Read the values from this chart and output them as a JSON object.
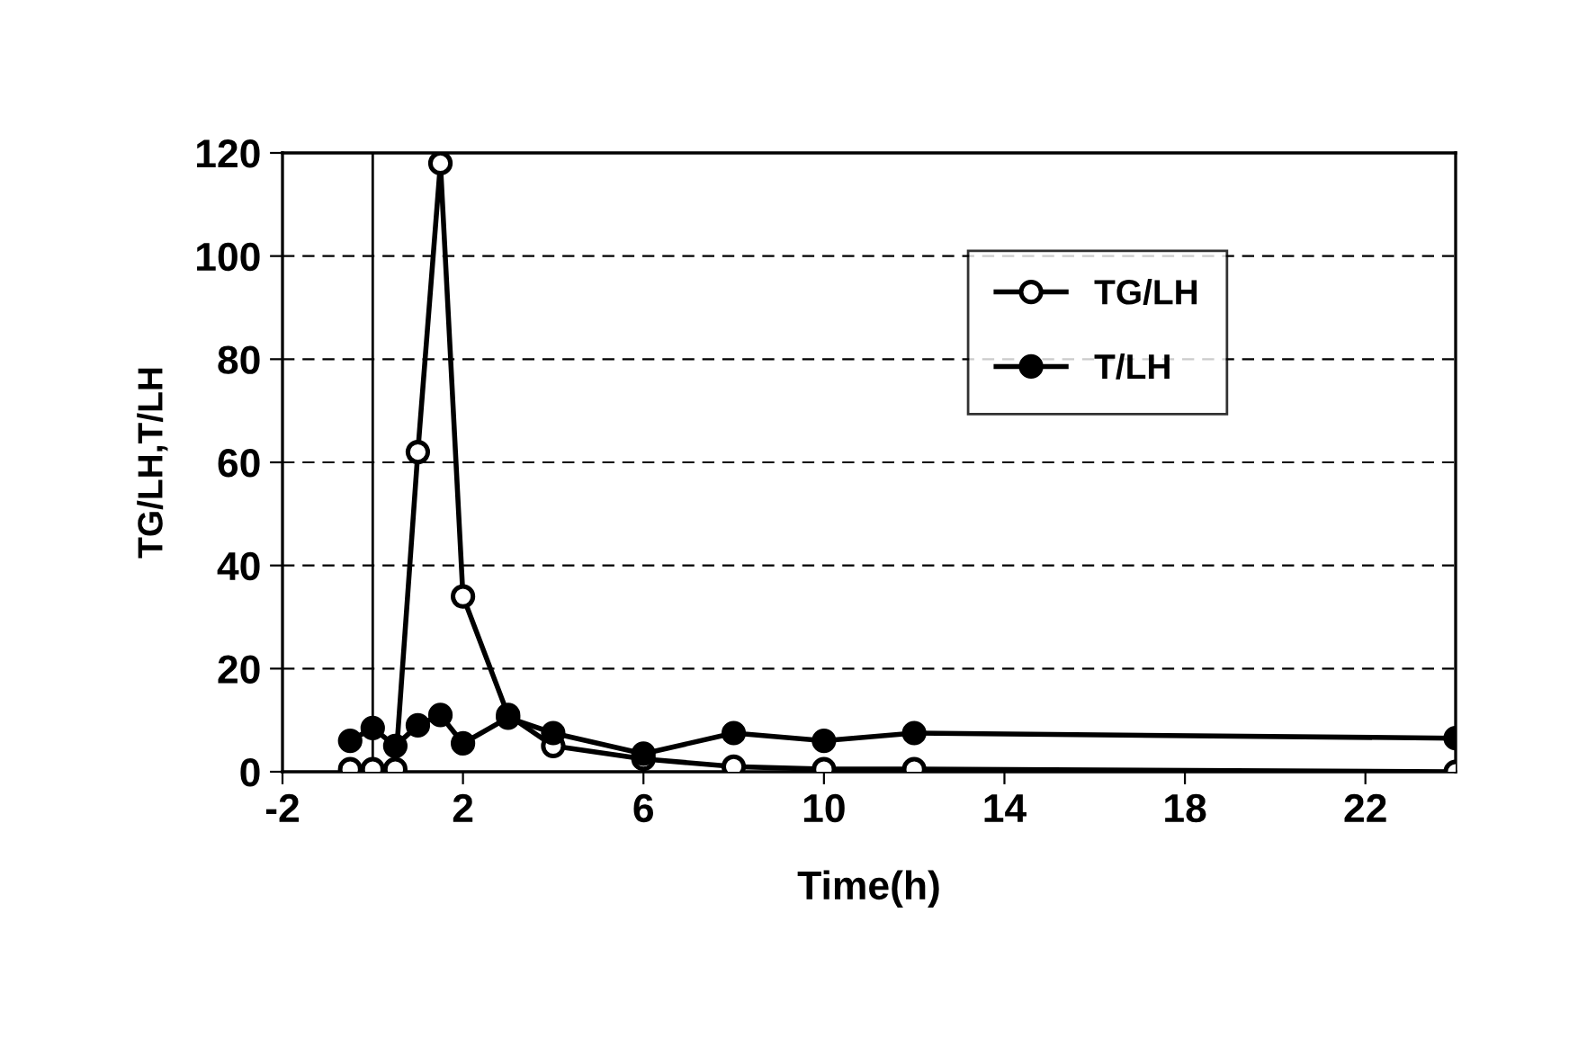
{
  "chart_data": {
    "type": "line",
    "xlabel": "Time(h)",
    "ylabel": "TG/LH,T/LH",
    "x": [
      -0.5,
      0,
      0.5,
      1,
      1.5,
      2,
      3,
      4,
      6,
      8,
      10,
      12,
      24
    ],
    "series": [
      {
        "name": "TG/LH",
        "color": "#000000",
        "marker": "circle",
        "values": [
          0.5,
          0.5,
          0.5,
          62,
          118,
          34,
          11,
          5,
          2.5,
          1,
          0.5,
          0.5,
          0
        ]
      },
      {
        "name": "T/LH",
        "color": "#000000",
        "marker": "circle",
        "values": [
          6,
          8.5,
          5,
          9,
          11,
          5.5,
          10.5,
          7.5,
          3.5,
          7.5,
          6,
          7.5,
          6.5
        ]
      }
    ],
    "xlim": [
      -2,
      24
    ],
    "xticks": [
      -2,
      2,
      6,
      10,
      14,
      18,
      22
    ],
    "ylim": [
      0,
      120
    ],
    "yticks": [
      0,
      20,
      40,
      60,
      80,
      100,
      120
    ],
    "ref_lines": [
      {
        "axis": "x",
        "value": 0,
        "color": "#000000",
        "line_style": "solid"
      }
    ],
    "grid": "y",
    "legend": "top right",
    "line_style": "solid"
  }
}
